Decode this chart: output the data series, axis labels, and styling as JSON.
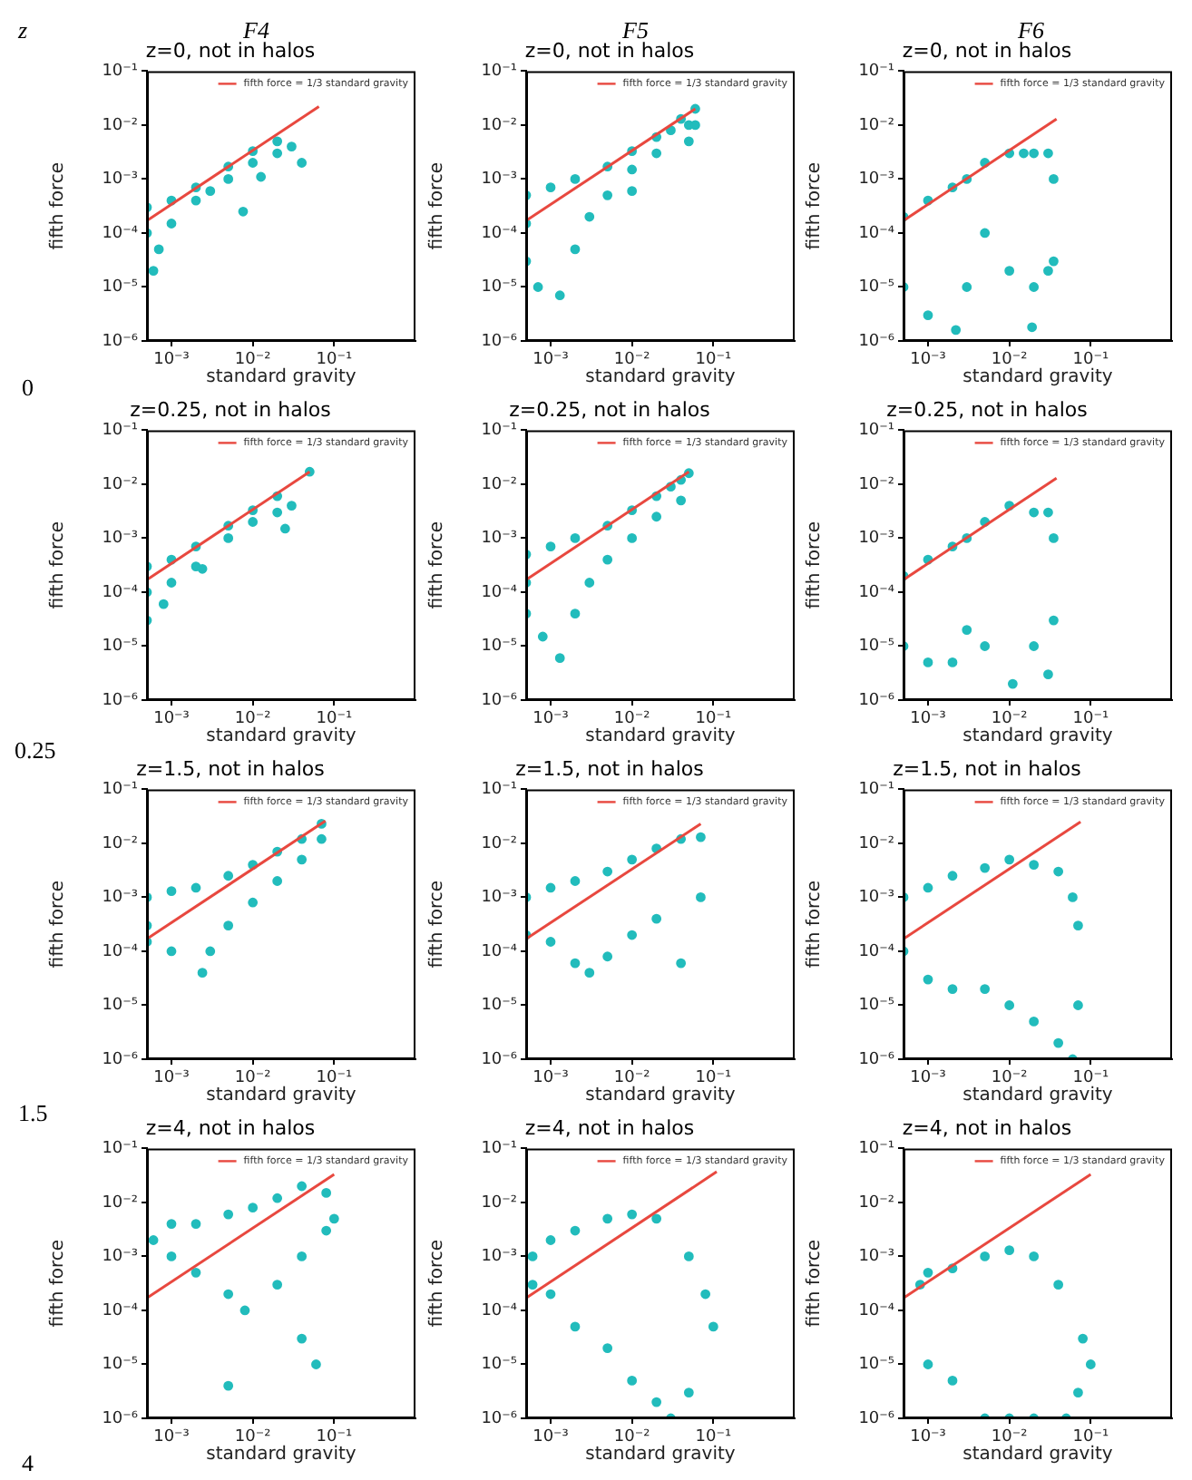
{
  "chart_data": [
    {
      "type": "scatter",
      "title": "z=0, not in halos",
      "xlabel": "standard gravity",
      "ylabel": "fifth force",
      "log": "xy",
      "legend": "top right",
      "xlim": [
        0.0005,
        1
      ],
      "ylim": [
        1e-06,
        0.1
      ],
      "xticks": [
        {
          "value": 0.001,
          "label": "10⁻³"
        },
        {
          "value": 0.01,
          "label": "10⁻²"
        },
        {
          "value": 0.1,
          "label": "10⁻¹"
        }
      ],
      "yticks": [
        {
          "value": 1e-06,
          "label": "10⁻⁶"
        },
        {
          "value": 1e-05,
          "label": "10⁻⁵"
        },
        {
          "value": 0.0001,
          "label": "10⁻⁴"
        },
        {
          "value": 0.001,
          "label": "10⁻³"
        },
        {
          "value": 0.01,
          "label": "10⁻²"
        },
        {
          "value": 0.1,
          "label": "10⁻¹"
        }
      ],
      "series": [
        {
          "type": "scatter",
          "marker": "circle",
          "color": "#22bcbc",
          "x": [
            0.0005,
            0.0005,
            0.0006,
            0.0007,
            0.001,
            0.001,
            0.002,
            0.002,
            0.003,
            0.005,
            0.005,
            0.01,
            0.01,
            0.02,
            0.02,
            0.03,
            0.04,
            0.0076,
            0.0126
          ],
          "values": [
            0.0003,
            0.0001,
            2e-05,
            5e-05,
            0.00015,
            0.0004,
            0.0007,
            0.0004,
            0.0006,
            0.0017,
            0.001,
            0.0033,
            0.002,
            0.005,
            0.003,
            0.004,
            0.002,
            0.00025,
            0.0011
          ]
        },
        {
          "type": "line",
          "marker": "none",
          "name": "fifth force = 1/3 standard gravity",
          "color": "#e8483f",
          "x": [
            0.0005,
            0.065
          ],
          "values": [
            0.00017,
            0.022
          ]
        }
      ]
    },
    {
      "type": "scatter",
      "title": "z=0, not in halos",
      "xlabel": "standard gravity",
      "ylabel": "fifth force",
      "log": "xy",
      "legend": "top right",
      "xlim": [
        0.0005,
        1
      ],
      "ylim": [
        1e-06,
        0.1
      ],
      "xticks": [
        {
          "value": 0.001,
          "label": "10⁻³"
        },
        {
          "value": 0.01,
          "label": "10⁻²"
        },
        {
          "value": 0.1,
          "label": "10⁻¹"
        }
      ],
      "yticks": [
        {
          "value": 1e-06,
          "label": "10⁻⁶"
        },
        {
          "value": 1e-05,
          "label": "10⁻⁵"
        },
        {
          "value": 0.0001,
          "label": "10⁻⁴"
        },
        {
          "value": 0.001,
          "label": "10⁻³"
        },
        {
          "value": 0.01,
          "label": "10⁻²"
        },
        {
          "value": 0.1,
          "label": "10⁻¹"
        }
      ],
      "series": [
        {
          "type": "scatter",
          "marker": "circle",
          "color": "#22bcbc",
          "x": [
            0.0005,
            0.0005,
            0.0005,
            0.0007,
            0.0013,
            0.001,
            0.002,
            0.002,
            0.003,
            0.005,
            0.005,
            0.01,
            0.01,
            0.01,
            0.02,
            0.02,
            0.03,
            0.04,
            0.05,
            0.05,
            0.06,
            0.06
          ],
          "values": [
            0.0005,
            0.00015,
            3e-05,
            1e-05,
            7e-06,
            0.0007,
            0.001,
            5e-05,
            0.0002,
            0.0017,
            0.0005,
            0.0033,
            0.0015,
            0.0006,
            0.006,
            0.003,
            0.008,
            0.013,
            0.005,
            0.01,
            0.02,
            0.01
          ]
        },
        {
          "type": "line",
          "marker": "none",
          "name": "fifth force = 1/3 standard gravity",
          "color": "#e8483f",
          "x": [
            0.0005,
            0.06
          ],
          "values": [
            0.00017,
            0.02
          ]
        }
      ]
    },
    {
      "type": "scatter",
      "title": "z=0, not in halos",
      "xlabel": "standard gravity",
      "ylabel": "fifth force",
      "log": "xy",
      "legend": "top right",
      "xlim": [
        0.0005,
        1
      ],
      "ylim": [
        1e-06,
        0.1
      ],
      "xticks": [
        {
          "value": 0.001,
          "label": "10⁻³"
        },
        {
          "value": 0.01,
          "label": "10⁻²"
        },
        {
          "value": 0.1,
          "label": "10⁻¹"
        }
      ],
      "yticks": [
        {
          "value": 1e-06,
          "label": "10⁻⁶"
        },
        {
          "value": 1e-05,
          "label": "10⁻⁵"
        },
        {
          "value": 0.0001,
          "label": "10⁻⁴"
        },
        {
          "value": 0.001,
          "label": "10⁻³"
        },
        {
          "value": 0.01,
          "label": "10⁻²"
        },
        {
          "value": 0.1,
          "label": "10⁻¹"
        }
      ],
      "series": [
        {
          "type": "scatter",
          "marker": "circle",
          "color": "#22bcbc",
          "x": [
            0.0005,
            0.0005,
            0.001,
            0.001,
            0.002,
            0.0022,
            0.003,
            0.003,
            0.005,
            0.005,
            0.01,
            0.01,
            0.015,
            0.019,
            0.02,
            0.02,
            0.03,
            0.03,
            0.035,
            0.035
          ],
          "values": [
            0.0002,
            1e-05,
            0.0004,
            3e-06,
            0.0007,
            1.6e-06,
            0.001,
            1e-05,
            0.002,
            0.0001,
            0.003,
            2e-05,
            0.003,
            1.8e-06,
            0.003,
            1e-05,
            0.003,
            2e-05,
            0.001,
            3e-05
          ]
        },
        {
          "type": "line",
          "marker": "none",
          "name": "fifth force = 1/3 standard gravity",
          "color": "#e8483f",
          "x": [
            0.0005,
            0.038
          ],
          "values": [
            0.00017,
            0.013
          ]
        }
      ]
    },
    {
      "type": "scatter",
      "title": "z=0.25, not in halos",
      "xlabel": "standard gravity",
      "ylabel": "fifth force",
      "log": "xy",
      "legend": "top right",
      "xlim": [
        0.0005,
        1
      ],
      "ylim": [
        1e-06,
        0.1
      ],
      "xticks": [
        {
          "value": 0.001,
          "label": "10⁻³"
        },
        {
          "value": 0.01,
          "label": "10⁻²"
        },
        {
          "value": 0.1,
          "label": "10⁻¹"
        }
      ],
      "yticks": [
        {
          "value": 1e-06,
          "label": "10⁻⁶"
        },
        {
          "value": 1e-05,
          "label": "10⁻⁵"
        },
        {
          "value": 0.0001,
          "label": "10⁻⁴"
        },
        {
          "value": 0.001,
          "label": "10⁻³"
        },
        {
          "value": 0.01,
          "label": "10⁻²"
        },
        {
          "value": 0.1,
          "label": "10⁻¹"
        }
      ],
      "series": [
        {
          "type": "scatter",
          "marker": "circle",
          "color": "#22bcbc",
          "x": [
            0.0005,
            0.0005,
            0.0005,
            0.0008,
            0.001,
            0.001,
            0.002,
            0.002,
            0.0024,
            0.005,
            0.005,
            0.01,
            0.01,
            0.02,
            0.02,
            0.025,
            0.03,
            0.05
          ],
          "values": [
            0.0003,
            0.0001,
            3e-05,
            6e-05,
            0.0004,
            0.00015,
            0.0007,
            0.0003,
            0.00027,
            0.0017,
            0.001,
            0.0033,
            0.002,
            0.006,
            0.003,
            0.0015,
            0.004,
            0.017
          ]
        },
        {
          "type": "line",
          "marker": "none",
          "name": "fifth force = 1/3 standard gravity",
          "color": "#e8483f",
          "x": [
            0.0005,
            0.05
          ],
          "values": [
            0.00017,
            0.017
          ]
        }
      ]
    },
    {
      "type": "scatter",
      "title": "z=0.25, not in halos",
      "xlabel": "standard gravity",
      "ylabel": "fifth force",
      "log": "xy",
      "legend": "top right",
      "xlim": [
        0.0005,
        1
      ],
      "ylim": [
        1e-06,
        0.1
      ],
      "xticks": [
        {
          "value": 0.001,
          "label": "10⁻³"
        },
        {
          "value": 0.01,
          "label": "10⁻²"
        },
        {
          "value": 0.1,
          "label": "10⁻¹"
        }
      ],
      "yticks": [
        {
          "value": 1e-06,
          "label": "10⁻⁶"
        },
        {
          "value": 1e-05,
          "label": "10⁻⁵"
        },
        {
          "value": 0.0001,
          "label": "10⁻⁴"
        },
        {
          "value": 0.001,
          "label": "10⁻³"
        },
        {
          "value": 0.01,
          "label": "10⁻²"
        },
        {
          "value": 0.1,
          "label": "10⁻¹"
        }
      ],
      "series": [
        {
          "type": "scatter",
          "marker": "circle",
          "color": "#22bcbc",
          "x": [
            0.0005,
            0.0005,
            0.0005,
            0.0008,
            0.001,
            0.0013,
            0.002,
            0.002,
            0.003,
            0.005,
            0.005,
            0.01,
            0.01,
            0.02,
            0.02,
            0.03,
            0.04,
            0.04,
            0.05
          ],
          "values": [
            0.0005,
            0.00015,
            4e-05,
            1.5e-05,
            0.0007,
            6e-06,
            0.001,
            4e-05,
            0.00015,
            0.0017,
            0.0004,
            0.0033,
            0.001,
            0.006,
            0.0025,
            0.009,
            0.012,
            0.005,
            0.016
          ]
        },
        {
          "type": "line",
          "marker": "none",
          "name": "fifth force = 1/3 standard gravity",
          "color": "#e8483f",
          "x": [
            0.0005,
            0.05
          ],
          "values": [
            0.00017,
            0.017
          ]
        }
      ]
    },
    {
      "type": "scatter",
      "title": "z=0.25, not in halos",
      "xlabel": "standard gravity",
      "ylabel": "fifth force",
      "log": "xy",
      "legend": "top right",
      "xlim": [
        0.0005,
        1
      ],
      "ylim": [
        1e-06,
        0.1
      ],
      "xticks": [
        {
          "value": 0.001,
          "label": "10⁻³"
        },
        {
          "value": 0.01,
          "label": "10⁻²"
        },
        {
          "value": 0.1,
          "label": "10⁻¹"
        }
      ],
      "yticks": [
        {
          "value": 1e-06,
          "label": "10⁻⁶"
        },
        {
          "value": 1e-05,
          "label": "10⁻⁵"
        },
        {
          "value": 0.0001,
          "label": "10⁻⁴"
        },
        {
          "value": 0.001,
          "label": "10⁻³"
        },
        {
          "value": 0.01,
          "label": "10⁻²"
        },
        {
          "value": 0.1,
          "label": "10⁻¹"
        }
      ],
      "series": [
        {
          "type": "scatter",
          "marker": "circle",
          "color": "#22bcbc",
          "x": [
            0.0005,
            0.0005,
            0.001,
            0.001,
            0.002,
            0.002,
            0.003,
            0.003,
            0.005,
            0.005,
            0.01,
            0.011,
            0.02,
            0.02,
            0.03,
            0.03,
            0.035,
            0.035
          ],
          "values": [
            0.0002,
            1e-05,
            0.0004,
            5e-06,
            0.0007,
            5e-06,
            0.001,
            2e-05,
            0.002,
            1e-05,
            0.004,
            2e-06,
            0.003,
            1e-05,
            0.003,
            3e-06,
            0.001,
            3e-05
          ]
        },
        {
          "type": "line",
          "marker": "none",
          "name": "fifth force = 1/3 standard gravity",
          "color": "#e8483f",
          "x": [
            0.0005,
            0.038
          ],
          "values": [
            0.00017,
            0.013
          ]
        }
      ]
    },
    {
      "type": "scatter",
      "title": "z=1.5, not in halos",
      "xlabel": "standard gravity",
      "ylabel": "fifth force",
      "log": "xy",
      "legend": "top right",
      "xlim": [
        0.0005,
        1
      ],
      "ylim": [
        1e-06,
        0.1
      ],
      "xticks": [
        {
          "value": 0.001,
          "label": "10⁻³"
        },
        {
          "value": 0.01,
          "label": "10⁻²"
        },
        {
          "value": 0.1,
          "label": "10⁻¹"
        }
      ],
      "yticks": [
        {
          "value": 1e-06,
          "label": "10⁻⁶"
        },
        {
          "value": 1e-05,
          "label": "10⁻⁵"
        },
        {
          "value": 0.0001,
          "label": "10⁻⁴"
        },
        {
          "value": 0.001,
          "label": "10⁻³"
        },
        {
          "value": 0.01,
          "label": "10⁻²"
        },
        {
          "value": 0.1,
          "label": "10⁻¹"
        }
      ],
      "series": [
        {
          "type": "scatter",
          "marker": "circle",
          "color": "#22bcbc",
          "x": [
            0.0005,
            0.0005,
            0.0005,
            0.001,
            0.001,
            0.002,
            0.0024,
            0.003,
            0.005,
            0.005,
            0.01,
            0.01,
            0.02,
            0.02,
            0.04,
            0.04,
            0.07,
            0.07
          ],
          "values": [
            0.001,
            0.0003,
            0.00015,
            0.0013,
            0.0001,
            0.0015,
            4e-05,
            0.0001,
            0.0025,
            0.0003,
            0.004,
            0.0008,
            0.007,
            0.002,
            0.012,
            0.005,
            0.023,
            0.012
          ]
        },
        {
          "type": "line",
          "marker": "none",
          "name": "fifth force = 1/3 standard gravity",
          "color": "#e8483f",
          "x": [
            0.0005,
            0.078
          ],
          "values": [
            0.00017,
            0.026
          ]
        }
      ]
    },
    {
      "type": "scatter",
      "title": "z=1.5, not in halos",
      "xlabel": "standard gravity",
      "ylabel": "fifth force",
      "log": "xy",
      "legend": "top right",
      "xlim": [
        0.0005,
        1
      ],
      "ylim": [
        1e-06,
        0.1
      ],
      "xticks": [
        {
          "value": 0.001,
          "label": "10⁻³"
        },
        {
          "value": 0.01,
          "label": "10⁻²"
        },
        {
          "value": 0.1,
          "label": "10⁻¹"
        }
      ],
      "yticks": [
        {
          "value": 1e-06,
          "label": "10⁻⁶"
        },
        {
          "value": 1e-05,
          "label": "10⁻⁵"
        },
        {
          "value": 0.0001,
          "label": "10⁻⁴"
        },
        {
          "value": 0.001,
          "label": "10⁻³"
        },
        {
          "value": 0.01,
          "label": "10⁻²"
        },
        {
          "value": 0.1,
          "label": "10⁻¹"
        }
      ],
      "series": [
        {
          "type": "scatter",
          "marker": "circle",
          "color": "#22bcbc",
          "x": [
            0.0005,
            0.0005,
            0.001,
            0.001,
            0.002,
            0.002,
            0.003,
            0.005,
            0.005,
            0.01,
            0.01,
            0.02,
            0.02,
            0.04,
            0.04,
            0.07,
            0.07
          ],
          "values": [
            0.001,
            0.0002,
            0.0015,
            0.00015,
            0.002,
            6e-05,
            4e-05,
            0.003,
            8e-05,
            0.005,
            0.0002,
            0.008,
            0.0004,
            0.012,
            6e-05,
            0.013,
            0.001
          ]
        },
        {
          "type": "line",
          "marker": "none",
          "name": "fifth force = 1/3 standard gravity",
          "color": "#e8483f",
          "x": [
            0.0005,
            0.07
          ],
          "values": [
            0.00017,
            0.023
          ]
        }
      ]
    },
    {
      "type": "scatter",
      "title": "z=1.5, not in halos",
      "xlabel": "standard gravity",
      "ylabel": "fifth force",
      "log": "xy",
      "legend": "top right",
      "xlim": [
        0.0005,
        1
      ],
      "ylim": [
        1e-06,
        0.1
      ],
      "xticks": [
        {
          "value": 0.001,
          "label": "10⁻³"
        },
        {
          "value": 0.01,
          "label": "10⁻²"
        },
        {
          "value": 0.1,
          "label": "10⁻¹"
        }
      ],
      "yticks": [
        {
          "value": 1e-06,
          "label": "10⁻⁶"
        },
        {
          "value": 1e-05,
          "label": "10⁻⁵"
        },
        {
          "value": 0.0001,
          "label": "10⁻⁴"
        },
        {
          "value": 0.001,
          "label": "10⁻³"
        },
        {
          "value": 0.01,
          "label": "10⁻²"
        },
        {
          "value": 0.1,
          "label": "10⁻¹"
        }
      ],
      "series": [
        {
          "type": "scatter",
          "marker": "circle",
          "color": "#22bcbc",
          "x": [
            0.0005,
            0.0005,
            0.001,
            0.001,
            0.002,
            0.002,
            0.005,
            0.005,
            0.01,
            0.01,
            0.02,
            0.02,
            0.04,
            0.04,
            0.06,
            0.06,
            0.07,
            0.07
          ],
          "values": [
            0.001,
            0.0001,
            0.0015,
            3e-05,
            0.0025,
            2e-05,
            0.0035,
            2e-05,
            0.005,
            1e-05,
            0.004,
            5e-06,
            0.003,
            2e-06,
            0.001,
            1e-06,
            0.0003,
            1e-05
          ]
        },
        {
          "type": "line",
          "marker": "none",
          "name": "fifth force = 1/3 standard gravity",
          "color": "#e8483f",
          "x": [
            0.0005,
            0.075
          ],
          "values": [
            0.00017,
            0.025
          ]
        }
      ]
    },
    {
      "type": "scatter",
      "title": "z=4, not in halos",
      "xlabel": "standard gravity",
      "ylabel": "fifth force",
      "log": "xy",
      "legend": "top right",
      "xlim": [
        0.0005,
        1
      ],
      "ylim": [
        1e-06,
        0.1
      ],
      "xticks": [
        {
          "value": 0.001,
          "label": "10⁻³"
        },
        {
          "value": 0.01,
          "label": "10⁻²"
        },
        {
          "value": 0.1,
          "label": "10⁻¹"
        }
      ],
      "yticks": [
        {
          "value": 1e-06,
          "label": "10⁻⁶"
        },
        {
          "value": 1e-05,
          "label": "10⁻⁵"
        },
        {
          "value": 0.0001,
          "label": "10⁻⁴"
        },
        {
          "value": 0.001,
          "label": "10⁻³"
        },
        {
          "value": 0.01,
          "label": "10⁻²"
        },
        {
          "value": 0.1,
          "label": "10⁻¹"
        }
      ],
      "series": [
        {
          "type": "scatter",
          "marker": "circle",
          "color": "#22bcbc",
          "x": [
            0.0006,
            0.001,
            0.001,
            0.002,
            0.002,
            0.005,
            0.005,
            0.008,
            0.01,
            0.02,
            0.02,
            0.04,
            0.04,
            0.04,
            0.06,
            0.08,
            0.08,
            0.1,
            0.005
          ],
          "values": [
            0.002,
            0.004,
            0.001,
            0.004,
            0.0005,
            0.006,
            0.0002,
            0.0001,
            0.008,
            0.012,
            0.0003,
            0.02,
            0.001,
            3e-05,
            1e-05,
            0.015,
            0.003,
            0.005,
            4e-06
          ]
        },
        {
          "type": "line",
          "marker": "none",
          "name": "fifth force = 1/3 standard gravity",
          "color": "#e8483f",
          "x": [
            0.0005,
            0.1
          ],
          "values": [
            0.00017,
            0.033
          ]
        }
      ]
    },
    {
      "type": "scatter",
      "title": "z=4, not in halos",
      "xlabel": "standard gravity",
      "ylabel": "fifth force",
      "log": "xy",
      "legend": "top right",
      "xlim": [
        0.0005,
        1
      ],
      "ylim": [
        1e-06,
        0.1
      ],
      "xticks": [
        {
          "value": 0.001,
          "label": "10⁻³"
        },
        {
          "value": 0.01,
          "label": "10⁻²"
        },
        {
          "value": 0.1,
          "label": "10⁻¹"
        }
      ],
      "yticks": [
        {
          "value": 1e-06,
          "label": "10⁻⁶"
        },
        {
          "value": 1e-05,
          "label": "10⁻⁵"
        },
        {
          "value": 0.0001,
          "label": "10⁻⁴"
        },
        {
          "value": 0.001,
          "label": "10⁻³"
        },
        {
          "value": 0.01,
          "label": "10⁻²"
        },
        {
          "value": 0.1,
          "label": "10⁻¹"
        }
      ],
      "series": [
        {
          "type": "scatter",
          "marker": "circle",
          "color": "#22bcbc",
          "x": [
            0.0006,
            0.0006,
            0.001,
            0.001,
            0.002,
            0.002,
            0.005,
            0.005,
            0.01,
            0.01,
            0.02,
            0.02,
            0.03,
            0.05,
            0.05,
            0.08,
            0.1
          ],
          "values": [
            0.001,
            0.0003,
            0.002,
            0.0002,
            0.003,
            5e-05,
            0.005,
            2e-05,
            0.006,
            5e-06,
            0.005,
            2e-06,
            1e-06,
            0.001,
            3e-06,
            0.0002,
            5e-05
          ]
        },
        {
          "type": "line",
          "marker": "none",
          "name": "fifth force = 1/3 standard gravity",
          "color": "#e8483f",
          "x": [
            0.0005,
            0.11
          ],
          "values": [
            0.00017,
            0.037
          ]
        }
      ]
    },
    {
      "type": "scatter",
      "title": "z=4, not in halos",
      "xlabel": "standard gravity",
      "ylabel": "fifth force",
      "log": "xy",
      "legend": "top right",
      "xlim": [
        0.0005,
        1
      ],
      "ylim": [
        1e-06,
        0.1
      ],
      "xticks": [
        {
          "value": 0.001,
          "label": "10⁻³"
        },
        {
          "value": 0.01,
          "label": "10⁻²"
        },
        {
          "value": 0.1,
          "label": "10⁻¹"
        }
      ],
      "yticks": [
        {
          "value": 1e-06,
          "label": "10⁻⁶"
        },
        {
          "value": 1e-05,
          "label": "10⁻⁵"
        },
        {
          "value": 0.0001,
          "label": "10⁻⁴"
        },
        {
          "value": 0.001,
          "label": "10⁻³"
        },
        {
          "value": 0.01,
          "label": "10⁻²"
        },
        {
          "value": 0.1,
          "label": "10⁻¹"
        }
      ],
      "series": [
        {
          "type": "scatter",
          "marker": "circle",
          "color": "#22bcbc",
          "x": [
            0.0008,
            0.001,
            0.001,
            0.002,
            0.002,
            0.005,
            0.005,
            0.01,
            0.01,
            0.02,
            0.02,
            0.04,
            0.05,
            0.08,
            0.1,
            0.07
          ],
          "values": [
            0.0003,
            0.0005,
            1e-05,
            0.0006,
            5e-06,
            0.001,
            1e-06,
            0.0013,
            1e-06,
            0.001,
            1e-06,
            0.0003,
            1e-06,
            3e-05,
            1e-05,
            3e-06
          ]
        },
        {
          "type": "line",
          "marker": "none",
          "name": "fifth force = 1/3 standard gravity",
          "color": "#e8483f",
          "x": [
            0.0005,
            0.1
          ],
          "values": [
            0.00017,
            0.033
          ]
        }
      ]
    },
    {
      "type": "other",
      "annotations": [
        "z",
        "F4",
        "F5",
        "F6",
        "0",
        "0.25",
        "1.5",
        "4"
      ]
    }
  ]
}
